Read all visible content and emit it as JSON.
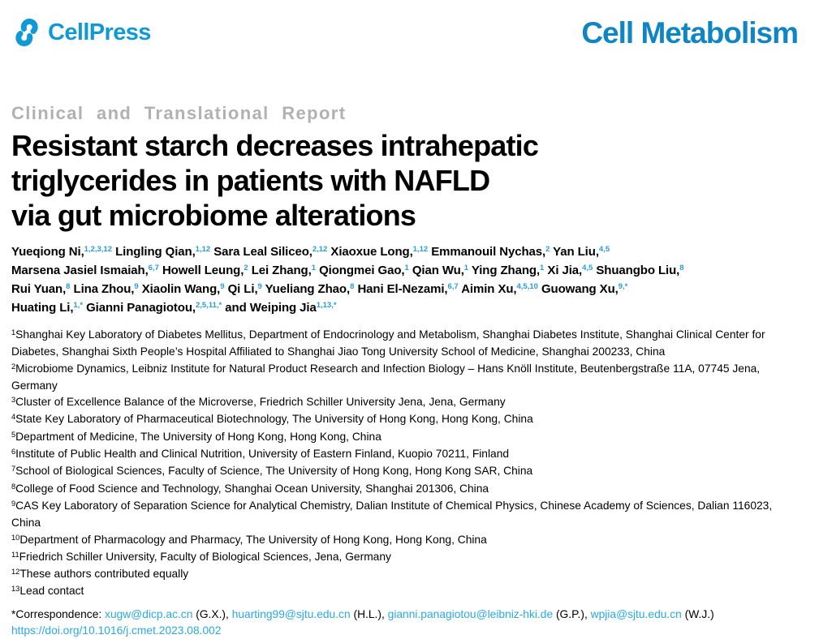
{
  "header": {
    "publisher": "CellPress",
    "journal": "Cell Metabolism"
  },
  "article": {
    "section_label": "Clinical and Translational Report",
    "title_lines": [
      "Resistant starch decreases intrahepatic",
      "triglycerides in patients with NAFLD",
      "via gut microbiome alterations"
    ],
    "author_lines": [
      [
        {
          "name": "Yueqiong Ni,",
          "sup": "1,2,3,12"
        },
        {
          "name": "Lingling Qian,",
          "sup": "1,12"
        },
        {
          "name": "Sara Leal Siliceo,",
          "sup": "2,12"
        },
        {
          "name": "Xiaoxue Long,",
          "sup": "1,12"
        },
        {
          "name": "Emmanouil Nychas,",
          "sup": "2"
        },
        {
          "name": "Yan Liu,",
          "sup": "4,5"
        }
      ],
      [
        {
          "name": "Marsena Jasiel Ismaiah,",
          "sup": "6,7"
        },
        {
          "name": "Howell Leung,",
          "sup": "2"
        },
        {
          "name": "Lei Zhang,",
          "sup": "1"
        },
        {
          "name": "Qiongmei Gao,",
          "sup": "1"
        },
        {
          "name": "Qian Wu,",
          "sup": "1"
        },
        {
          "name": "Ying Zhang,",
          "sup": "1"
        },
        {
          "name": "Xi Jia,",
          "sup": "4,5"
        },
        {
          "name": "Shuangbo Liu,",
          "sup": "8"
        }
      ],
      [
        {
          "name": "Rui Yuan,",
          "sup": "8"
        },
        {
          "name": "Lina Zhou,",
          "sup": "9"
        },
        {
          "name": "Xiaolin Wang,",
          "sup": "9"
        },
        {
          "name": "Qi Li,",
          "sup": "9"
        },
        {
          "name": "Yueliang Zhao,",
          "sup": "8"
        },
        {
          "name": "Hani El-Nezami,",
          "sup": "6,7"
        },
        {
          "name": "Aimin Xu,",
          "sup": "4,5,10"
        },
        {
          "name": "Guowang Xu,",
          "sup": "9,*"
        }
      ],
      [
        {
          "name": "Huating Li,",
          "sup": "1,*"
        },
        {
          "name": "Gianni Panagiotou,",
          "sup": "2,5,11,*"
        },
        {
          "name": "and Weiping Jia",
          "sup": "1,13,*"
        }
      ]
    ],
    "affiliations": [
      {
        "sup": "1",
        "text": "Shanghai Key Laboratory of Diabetes Mellitus, Department of Endocrinology and Metabolism, Shanghai Diabetes Institute, Shanghai Clinical Center for Diabetes, Shanghai Sixth People’s Hospital Affiliated to Shanghai Jiao Tong University School of Medicine, Shanghai 200233, China"
      },
      {
        "sup": "2",
        "text": "Microbiome Dynamics, Leibniz Institute for Natural Product Research and Infection Biology – Hans Knöll Institute, Beutenbergstraße 11A, 07745 Jena, Germany"
      },
      {
        "sup": "3",
        "text": "Cluster of Excellence Balance of the Microverse, Friedrich Schiller University Jena, Jena, Germany"
      },
      {
        "sup": "4",
        "text": "State Key Laboratory of Pharmaceutical Biotechnology, The University of Hong Kong, Hong Kong, China"
      },
      {
        "sup": "5",
        "text": "Department of Medicine, The University of Hong Kong, Hong Kong, China"
      },
      {
        "sup": "6",
        "text": "Institute of Public Health and Clinical Nutrition, University of Eastern Finland, Kuopio 70211, Finland"
      },
      {
        "sup": "7",
        "text": "School of Biological Sciences, Faculty of Science, The University of Hong Kong, Hong Kong SAR, China"
      },
      {
        "sup": "8",
        "text": "College of Food Science and Technology, Shanghai Ocean University, Shanghai 201306, China"
      },
      {
        "sup": "9",
        "text": "CAS Key Laboratory of Separation Science for Analytical Chemistry, Dalian Institute of Chemical Physics, Chinese Academy of Sciences, Dalian 116023, China"
      },
      {
        "sup": "10",
        "text": "Department of Pharmacology and Pharmacy, The University of Hong Kong, Hong Kong, China"
      },
      {
        "sup": "11",
        "text": "Friedrich Schiller University, Faculty of Biological Sciences, Jena, Germany"
      },
      {
        "sup": "12",
        "text": "These authors contributed equally"
      },
      {
        "sup": "13",
        "text": "Lead contact"
      }
    ],
    "correspondence": [
      {
        "type": "text",
        "value": "*Correspondence: "
      },
      {
        "type": "link",
        "value": "xugw@dicp.ac.cn"
      },
      {
        "type": "text",
        "value": " (G.X.), "
      },
      {
        "type": "link",
        "value": "huarting99@sjtu.edu.cn"
      },
      {
        "type": "text",
        "value": " (H.L.), "
      },
      {
        "type": "link",
        "value": "gianni.panagiotou@leibniz-hki.de"
      },
      {
        "type": "text",
        "value": " (G.P.), "
      },
      {
        "type": "link",
        "value": "wpjia@sjtu.edu.cn"
      },
      {
        "type": "text",
        "value": " (W.J.)"
      }
    ],
    "doi": "https://doi.org/10.1016/j.cmet.2023.08.002"
  },
  "colors": {
    "logo_blue": "#1199d6",
    "journal_blue": "#0f85c3",
    "author_superscript_blue": "#2b9cd8",
    "link_blue": "#2ba9e1",
    "section_label_gray": "#b2b1b1",
    "body_text": "#000000",
    "background": "#ffffff"
  }
}
